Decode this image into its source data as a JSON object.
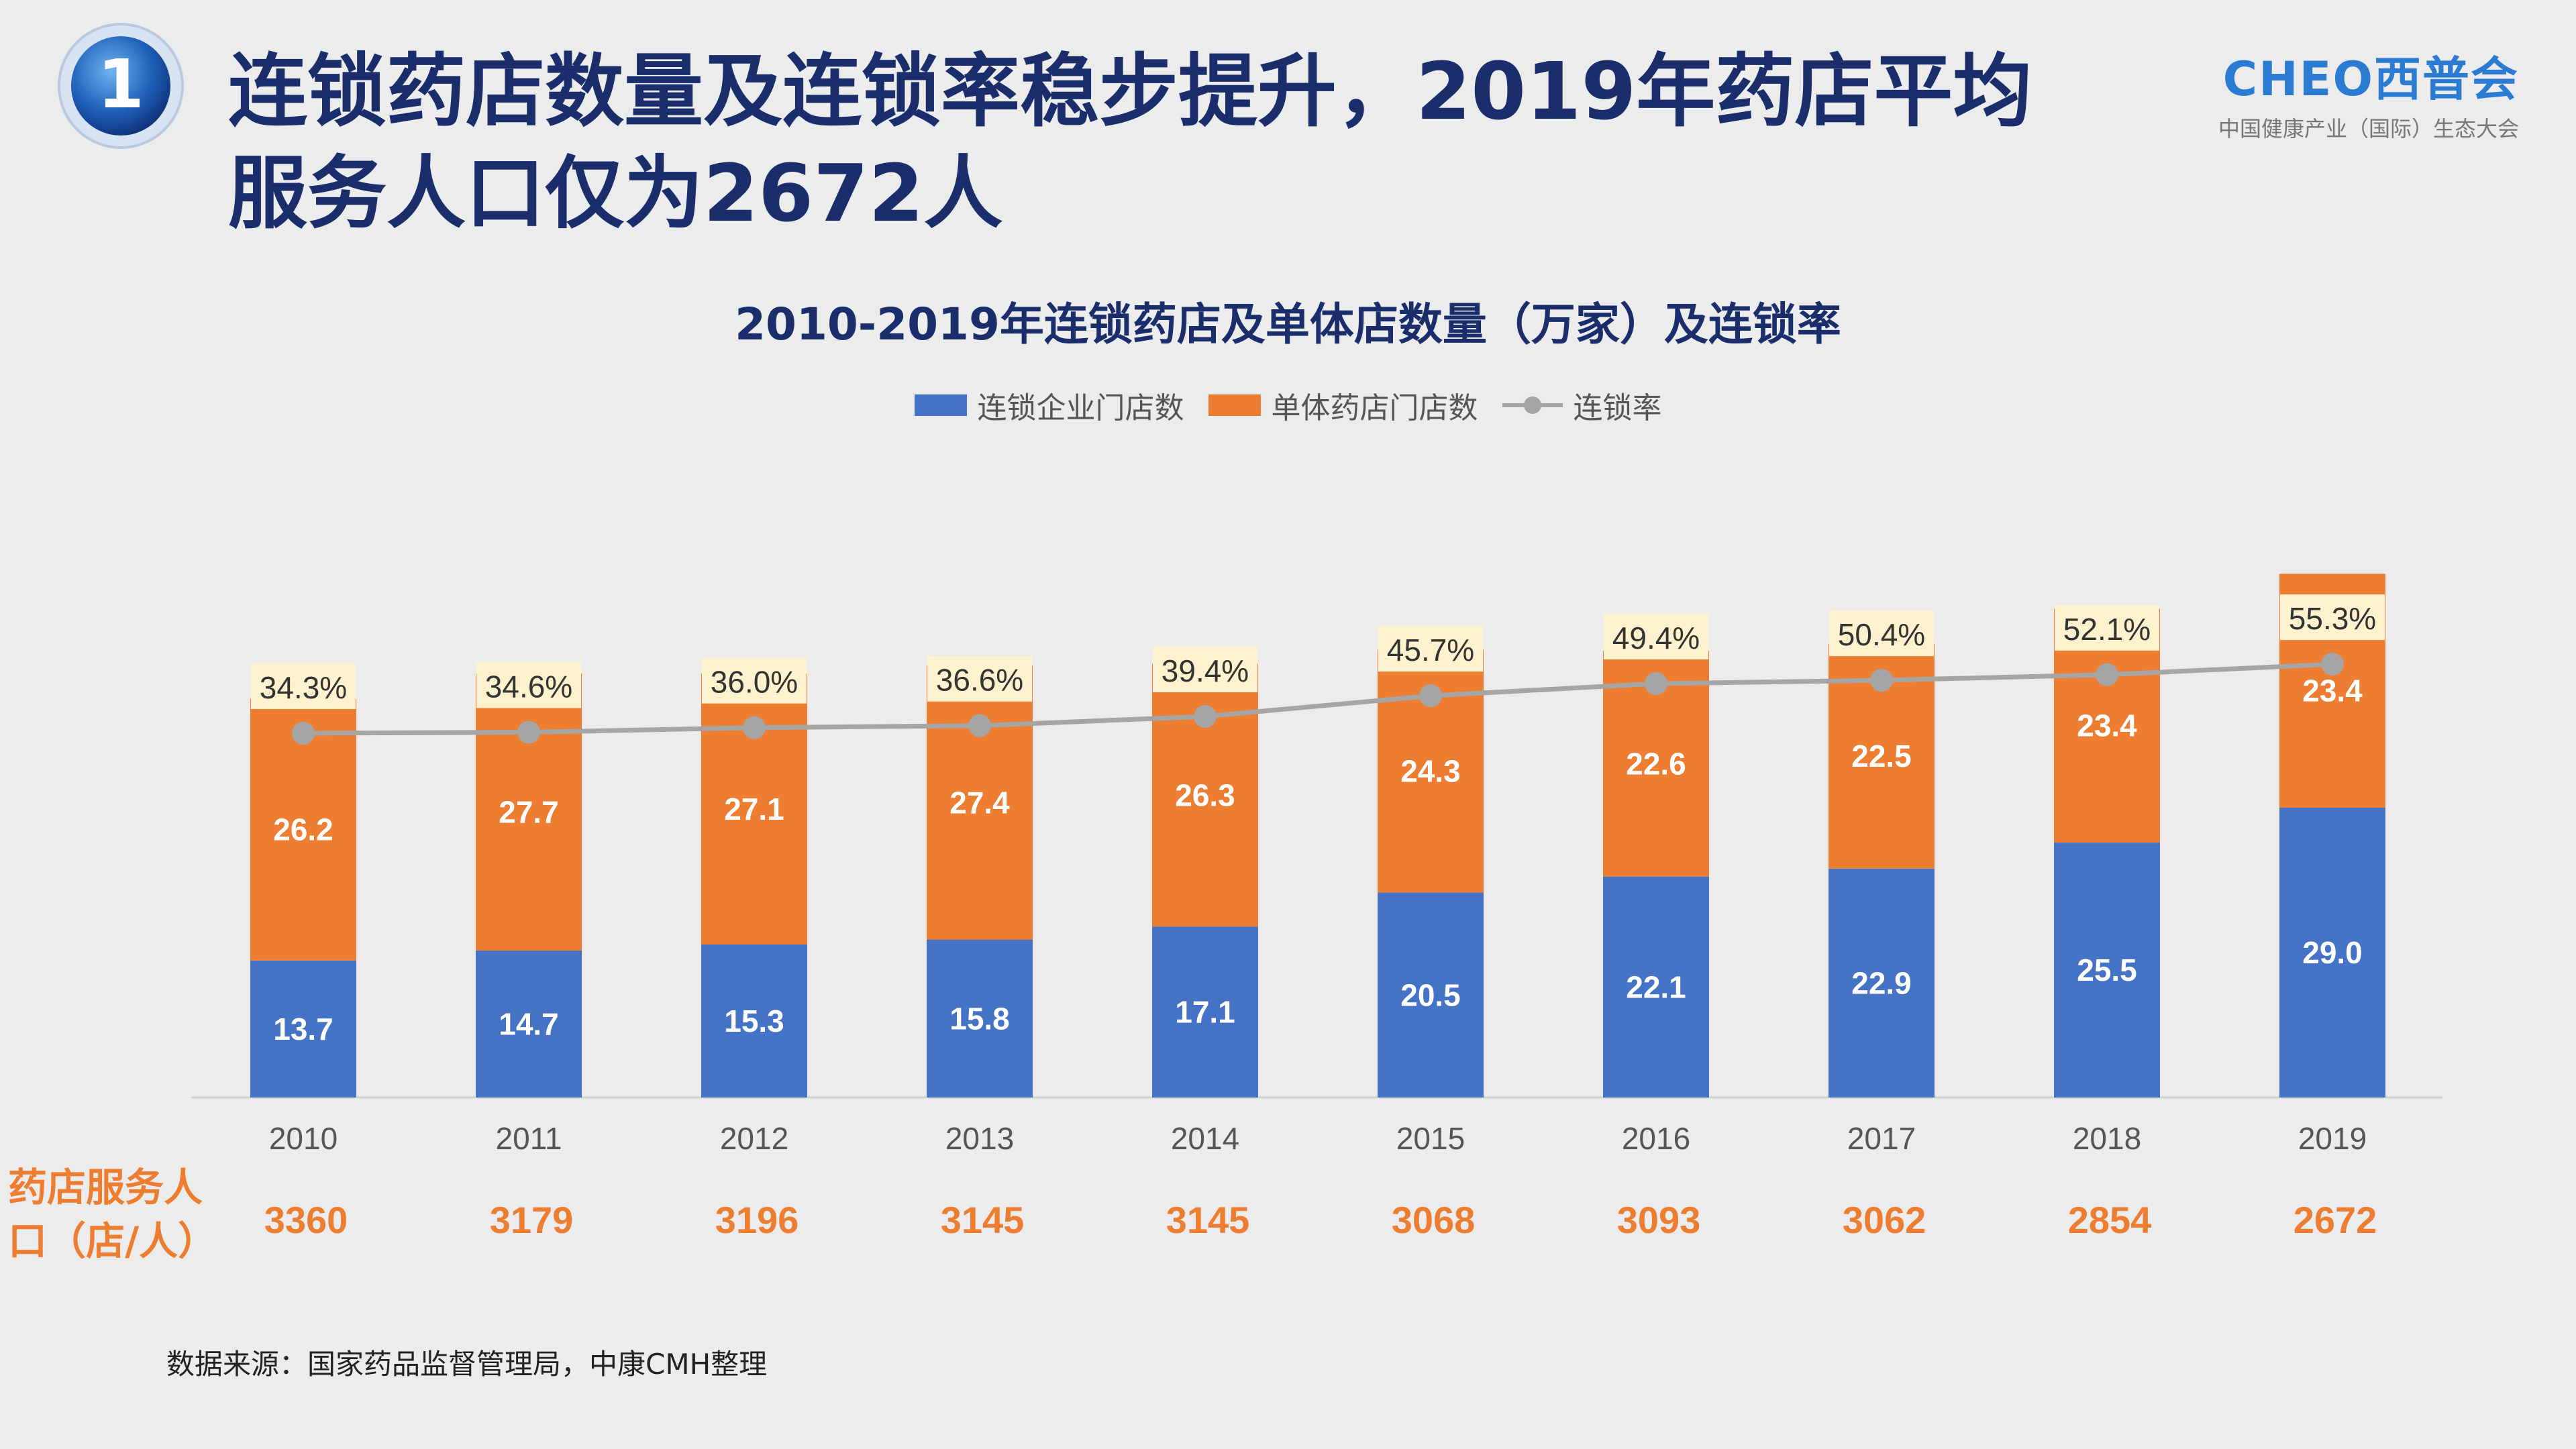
{
  "header": {
    "title": "连锁药店数量及连锁率稳步提升，2019年药店平均服务人口仅为2672人",
    "badge_number": "1",
    "brand_name": "CHEO西普会",
    "brand_sub": "中国健康产业（国际）生态大会"
  },
  "colors": {
    "chain": "#4472c4",
    "single": "#ed7d31",
    "rate_line": "#a5a5a5",
    "title": "#1b2d6b",
    "service": "#ed7d31",
    "label_bg": "#fdf2cd"
  },
  "chart_data": {
    "type": "bar",
    "stacked": true,
    "title": "2010-2019年连锁药店及单体店数量（万家）及连锁率",
    "categories": [
      "2010",
      "2011",
      "2012",
      "2013",
      "2014",
      "2015",
      "2016",
      "2017",
      "2018",
      "2019"
    ],
    "series": [
      {
        "name": "连锁企业门店数",
        "values": [
          13.7,
          14.7,
          15.3,
          15.8,
          17.1,
          20.5,
          22.1,
          22.9,
          25.5,
          29.0
        ]
      },
      {
        "name": "单体药店门店数",
        "values": [
          26.2,
          27.7,
          27.1,
          27.4,
          26.3,
          24.3,
          22.6,
          22.5,
          23.4,
          23.4
        ]
      }
    ],
    "line_series": {
      "name": "连锁率",
      "values": [
        34.3,
        34.6,
        36.0,
        36.6,
        39.4,
        45.7,
        49.4,
        50.4,
        52.1,
        55.3
      ],
      "labels": [
        "34.3%",
        "34.6%",
        "36.0%",
        "36.6%",
        "39.4%",
        "45.7%",
        "49.4%",
        "50.4%",
        "52.1%",
        "55.3%"
      ]
    },
    "legend_position": "top-center",
    "grid": false
  },
  "service_population": {
    "label": "药店服务人口（店/人）",
    "values": [
      "3360",
      "3179",
      "3196",
      "3145",
      "3145",
      "3068",
      "3093",
      "3062",
      "2854",
      "2672"
    ]
  },
  "source": "数据来源：国家药品监督管理局，中康CMH整理"
}
